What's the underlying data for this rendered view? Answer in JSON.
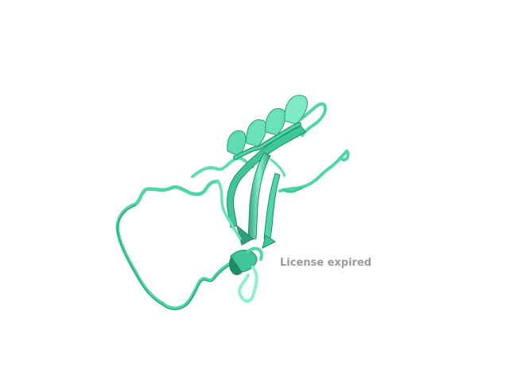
{
  "viewer": {
    "watermark_text": "License expired",
    "colors": {
      "background": "#ffffff",
      "cartoon_main": "#4fd6a6",
      "cartoon_light": "#7fe8c4",
      "cartoon_dark": "#1f8a66",
      "watermark": "#9a9a9a"
    },
    "molecule": {
      "representation": "cartoon",
      "elements": [
        "alpha-helix",
        "beta-sheet",
        "coil-loops",
        "short-helix"
      ]
    }
  }
}
